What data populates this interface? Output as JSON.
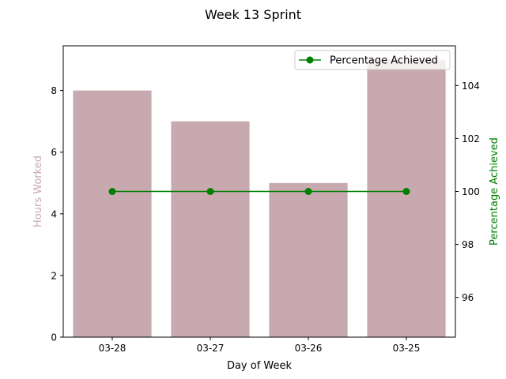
{
  "chart_data": {
    "type": "bar",
    "title": "Week 13 Sprint",
    "xlabel": "Day of Week",
    "categories": [
      "03-28",
      "03-27",
      "03-26",
      "03-25"
    ],
    "series": [
      {
        "name": "Hours Worked",
        "type": "bar",
        "axis": "left",
        "color": "#c8a9b0",
        "values": [
          8,
          7,
          5,
          9
        ]
      },
      {
        "name": "Percentage Achieved",
        "type": "line",
        "axis": "right",
        "color": "#008000",
        "values": [
          100,
          100,
          100,
          100
        ]
      }
    ],
    "ylabel_left": "Hours Worked",
    "ylabel_left_color": "#c8a9b0",
    "ylim_left": [
      0,
      9.45
    ],
    "yticks_left": [
      "0",
      "2",
      "4",
      "6",
      "8"
    ],
    "ylabel_right": "Percentage Achieved",
    "ylabel_right_color": "#008000",
    "ylim_right": [
      94.5,
      105.5
    ],
    "yticks_right": [
      "96",
      "98",
      "100",
      "102",
      "104"
    ],
    "legend": {
      "placement": "top-right",
      "entries": [
        "Percentage Achieved"
      ]
    },
    "grid": false
  }
}
